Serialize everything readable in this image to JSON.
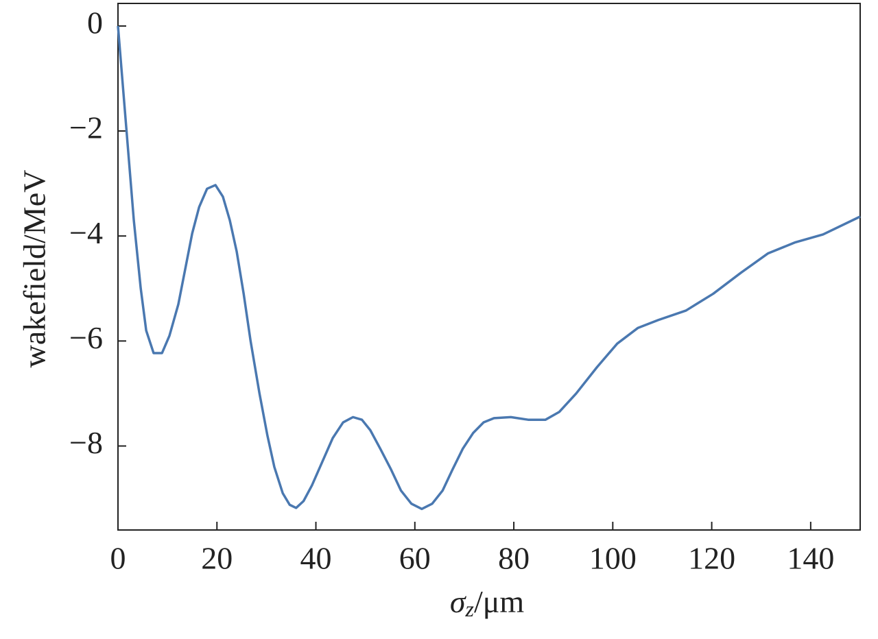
{
  "chart_data": {
    "type": "line",
    "x_label": {
      "symbol": "σ",
      "subscript": "z",
      "unit": "/μm"
    },
    "y_label": "wakefield/MeV",
    "xlim": [
      0,
      150
    ],
    "xticks": [
      0,
      20,
      40,
      60,
      80,
      100,
      120,
      140
    ],
    "ylim": [
      -9.6,
      0.43
    ],
    "yticks": [
      0,
      {
        "value": -2,
        "label": "−2"
      },
      {
        "value": -4,
        "label": "−4"
      },
      {
        "value": -6,
        "label": "−6"
      },
      {
        "value": -8,
        "label": "−8"
      }
    ],
    "x": [
      0,
      3.2,
      4.6,
      5.7,
      7.2,
      8.9,
      10.4,
      12.2,
      15,
      16.4,
      18,
      19.7,
      21.2,
      22.6,
      24,
      25.4,
      26.8,
      28.6,
      30.2,
      31.6,
      33.3,
      34.7,
      36,
      37.5,
      39.2,
      41.3,
      43.4,
      45.5,
      47.5,
      49.3,
      51,
      53,
      55.2,
      57.2,
      59.3,
      61.4,
      63.5,
      65.6,
      67.6,
      69.7,
      71.8,
      73.9,
      76,
      79.4,
      82.9,
      86.4,
      89.2,
      92.6,
      96.8,
      100.9,
      105.1,
      109.2,
      114.8,
      120.3,
      125.9,
      131.4,
      136.9,
      142.5,
      150
    ],
    "series": [
      {
        "color": "#4a78b0",
        "values": [
          0,
          -3.7,
          -5.0,
          -5.8,
          -6.23,
          -6.23,
          -5.9,
          -5.3,
          -3.95,
          -3.45,
          -3.1,
          -3.03,
          -3.25,
          -3.7,
          -4.3,
          -5.1,
          -6.0,
          -7.0,
          -7.8,
          -8.4,
          -8.9,
          -9.12,
          -9.18,
          -9.05,
          -8.75,
          -8.3,
          -7.85,
          -7.55,
          -7.45,
          -7.5,
          -7.7,
          -8.05,
          -8.45,
          -8.85,
          -9.1,
          -9.2,
          -9.1,
          -8.85,
          -8.45,
          -8.05,
          -7.75,
          -7.55,
          -7.47,
          -7.45,
          -7.5,
          -7.5,
          -7.35,
          -7.0,
          -6.5,
          -6.05,
          -5.75,
          -5.6,
          -5.42,
          -5.1,
          -4.7,
          -4.33,
          -4.12,
          -3.97,
          -3.63
        ]
      }
    ]
  }
}
